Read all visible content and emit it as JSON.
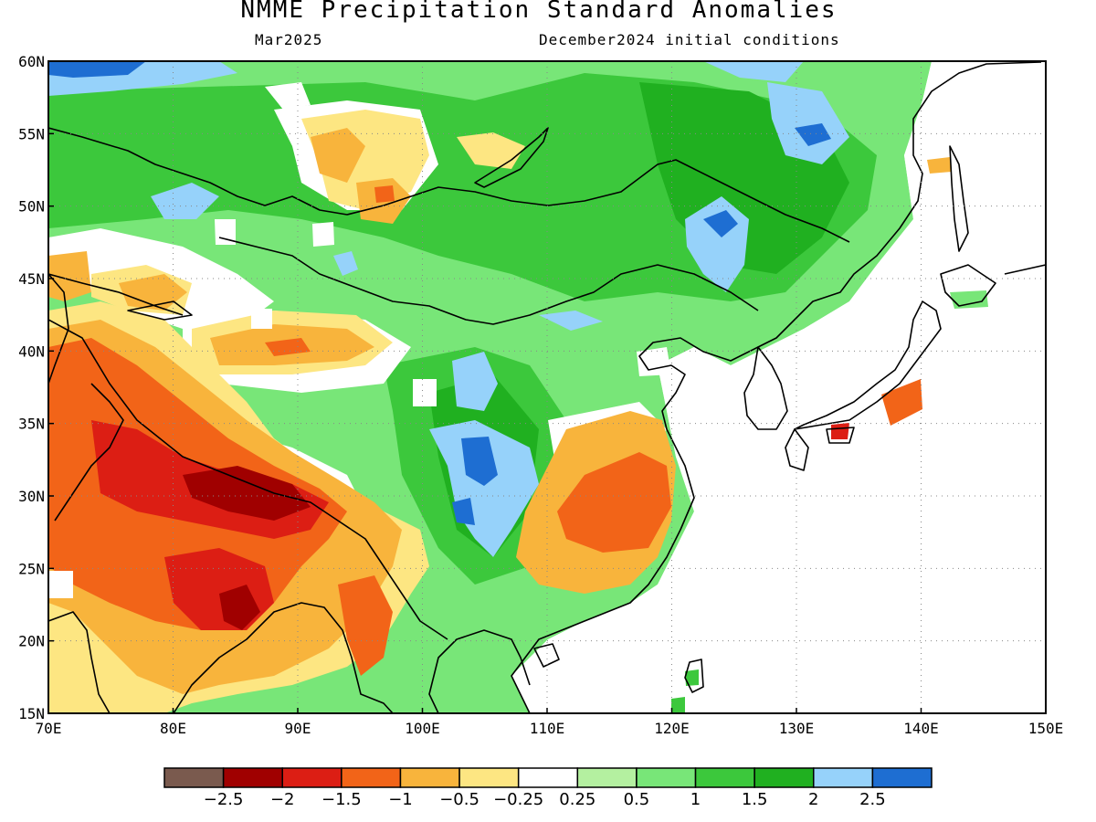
{
  "title": "NMME Precipitation Standard Anomalies",
  "subtitle_left": "Mar2025",
  "subtitle_right": "December2024 initial conditions",
  "map": {
    "lon_range": [
      70,
      150
    ],
    "lat_range": [
      15,
      60
    ],
    "lon_ticks": [
      "70E",
      "80E",
      "90E",
      "100E",
      "110E",
      "120E",
      "130E",
      "140E",
      "150E"
    ],
    "lat_ticks": [
      "15N",
      "20N",
      "25N",
      "30N",
      "35N",
      "40N",
      "45N",
      "50N",
      "55N",
      "60N"
    ],
    "gridlines": "dotted"
  },
  "colorbar": {
    "colors": [
      "#7a5a4e",
      "#a00000",
      "#dc1e14",
      "#f26418",
      "#f8b43c",
      "#fde682",
      "#ffffff",
      "#b4f0a0",
      "#78e678",
      "#3cc83c",
      "#20b020",
      "#96d2fa",
      "#1e6ed2"
    ],
    "labels": [
      "−2.5",
      "−2",
      "−1.5",
      "−1",
      "−0.5",
      "−0.25",
      "0.25",
      "0.5",
      "1",
      "1.5",
      "2",
      "2.5"
    ]
  },
  "features": {
    "coastline_color": "#000000",
    "ocean_color": "#ffffff"
  }
}
